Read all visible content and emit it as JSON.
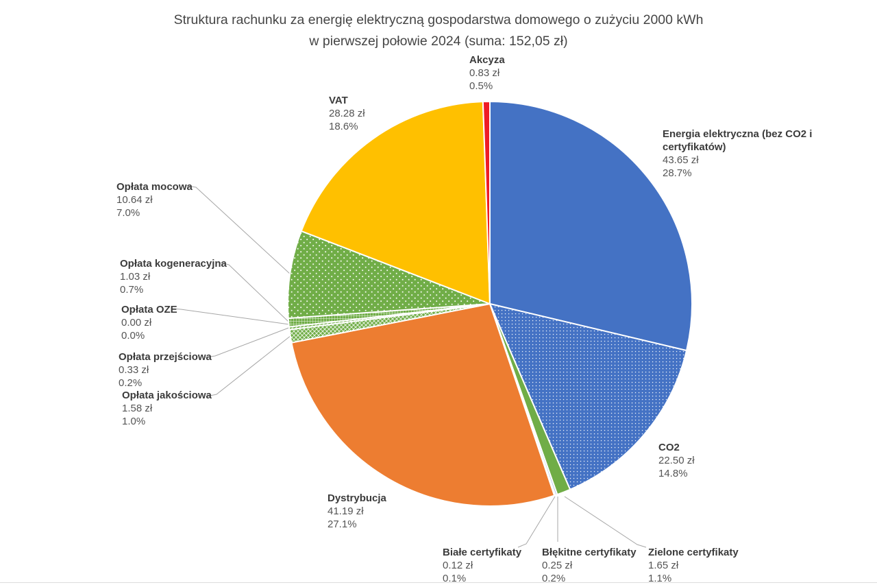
{
  "title": {
    "line1": "Struktura rachunku za energię elektryczną gospodarstwa domowego o zużyciu 2000 kWh",
    "line2": "w pierwszej połowie 2024 (suma: 152,05 zł)"
  },
  "chart_data": {
    "type": "pie",
    "title": "Struktura rachunku za energię elektryczną gospodarstwa domowego o zużyciu 2000 kWh w pierwszej połowie 2024 (suma: 152,05 zł)",
    "sum_text": "152,05 zł",
    "sum_zl": 152.05,
    "unit": "zł",
    "direction": "clockwise",
    "start_angle_deg": 0,
    "slices": [
      {
        "id": "energia",
        "label": "Energia elektryczna (bez CO2 i certyfikatów)",
        "amount_zl": 43.65,
        "amount_text": "43.65 zł",
        "percent": 28.7,
        "percent_text": "28.7%",
        "color": "#4472C4",
        "pattern": "solid"
      },
      {
        "id": "co2",
        "label": "CO2",
        "amount_zl": 22.5,
        "amount_text": "22.50 zł",
        "percent": 14.8,
        "percent_text": "14.8%",
        "color": "#4472C4",
        "pattern": "dots-dense"
      },
      {
        "id": "zielone",
        "label": "Zielone certyfikaty",
        "amount_zl": 1.65,
        "amount_text": "1.65 zł",
        "percent": 1.1,
        "percent_text": "1.1%",
        "color": "#70AD47",
        "pattern": "solid"
      },
      {
        "id": "blekitne",
        "label": "Błękitne certyfikaty",
        "amount_zl": 0.25,
        "amount_text": "0.25 zł",
        "percent": 0.2,
        "percent_text": "0.2%",
        "color": "#AECBE8",
        "pattern": "solid"
      },
      {
        "id": "biale",
        "label": "Białe certyfikaty",
        "amount_zl": 0.12,
        "amount_text": "0.12 zł",
        "percent": 0.1,
        "percent_text": "0.1%",
        "color": "#EFEDE6",
        "pattern": "solid"
      },
      {
        "id": "dystrybucja",
        "label": "Dystrybucja",
        "amount_zl": 41.19,
        "amount_text": "41.19 zł",
        "percent": 27.1,
        "percent_text": "27.1%",
        "color": "#ED7D31",
        "pattern": "solid"
      },
      {
        "id": "jakosciowa",
        "label": "Opłata jakościowa",
        "amount_zl": 1.58,
        "amount_text": "1.58 zł",
        "percent": 1.0,
        "percent_text": "1.0%",
        "color": "#70AD47",
        "pattern": "crosshatch"
      },
      {
        "id": "przejsciowa",
        "label": "Opłata przejściowa",
        "amount_zl": 0.33,
        "amount_text": "0.33 zł",
        "percent": 0.2,
        "percent_text": "0.2%",
        "color": "#70AD47",
        "pattern": "diag"
      },
      {
        "id": "oze",
        "label": "Opłata OZE",
        "amount_zl": 0.0,
        "amount_text": "0.00 zł",
        "percent": 0.0,
        "percent_text": "0.0%",
        "color": "#70AD47",
        "pattern": "solid"
      },
      {
        "id": "kogeneracyjna",
        "label": "Opłata kogeneracyjna",
        "amount_zl": 1.03,
        "amount_text": "1.03 zł",
        "percent": 0.7,
        "percent_text": "0.7%",
        "color": "#70AD47",
        "pattern": "grid"
      },
      {
        "id": "mocowa",
        "label": "Opłata mocowa",
        "amount_zl": 10.64,
        "amount_text": "10.64 zł",
        "percent": 7.0,
        "percent_text": "7.0%",
        "color": "#70AD47",
        "pattern": "dots-sparse"
      },
      {
        "id": "vat",
        "label": "VAT",
        "amount_zl": 28.28,
        "amount_text": "28.28 zł",
        "percent": 18.6,
        "percent_text": "18.6%",
        "color": "#FFC000",
        "pattern": "solid"
      },
      {
        "id": "akcyza",
        "label": "Akcyza",
        "amount_zl": 0.83,
        "amount_text": "0.83 zł",
        "percent": 0.5,
        "percent_text": "0.5%",
        "color": "#EE1C25",
        "pattern": "solid"
      }
    ],
    "style": {
      "background": "#FFFFFF",
      "leader_line_color": "#A6A6A6",
      "slice_border_color": "#FFFFFF",
      "title_color": "#454545",
      "label_name_color": "#3B3B3B",
      "label_value_color": "#545454"
    }
  }
}
